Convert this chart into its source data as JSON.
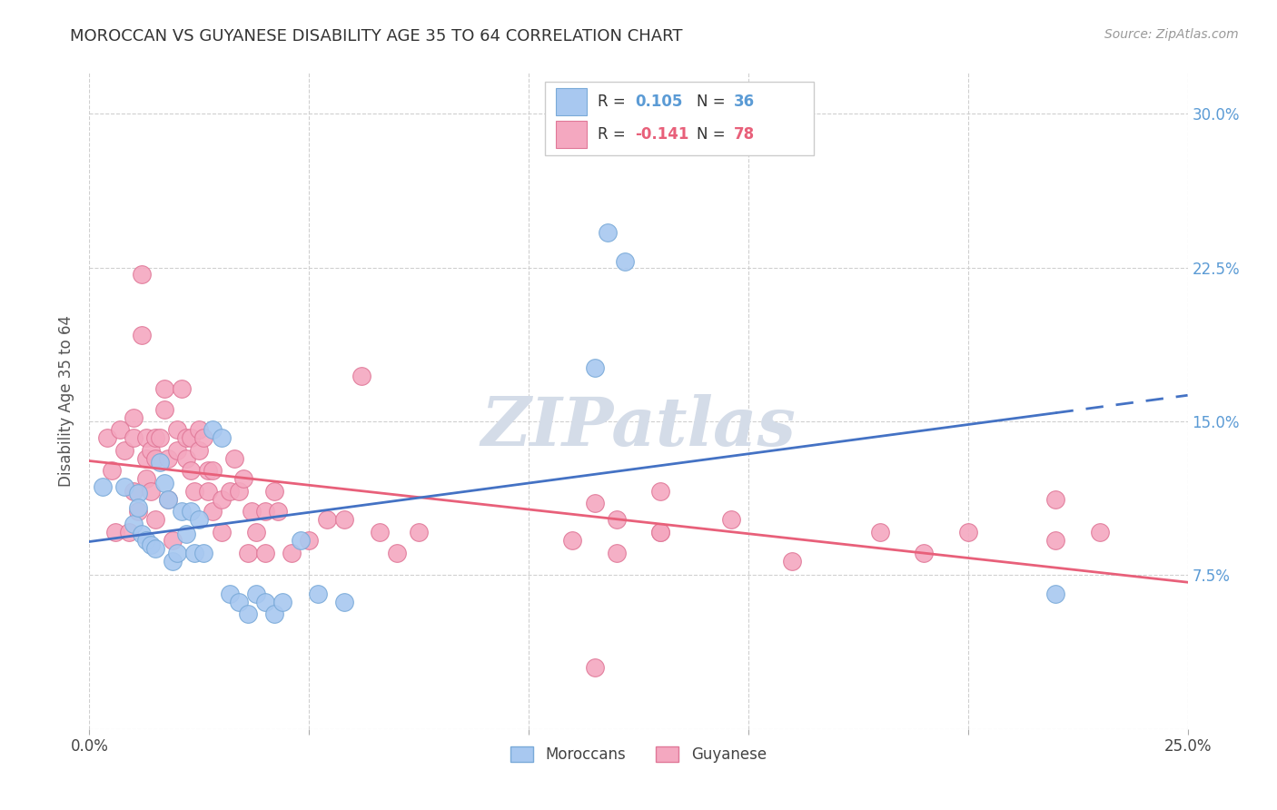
{
  "title": "MOROCCAN VS GUYANESE DISABILITY AGE 35 TO 64 CORRELATION CHART",
  "source": "Source: ZipAtlas.com",
  "ylabel": "Disability Age 35 to 64",
  "x_min": 0.0,
  "x_max": 0.25,
  "y_min": 0.0,
  "y_max": 0.32,
  "moroccan_R": 0.105,
  "moroccan_N": 36,
  "guyanese_R": -0.141,
  "guyanese_N": 78,
  "moroccan_color": "#a8c8f0",
  "moroccan_edge_color": "#7aaad8",
  "guyanese_color": "#f4a8c0",
  "guyanese_edge_color": "#e07898",
  "moroccan_line_color": "#4472c4",
  "guyanese_line_color": "#e8607a",
  "watermark_color": "#d4dce8",
  "background_color": "#ffffff",
  "grid_color": "#d0d0d0",
  "moroccan_x": [
    0.003,
    0.008,
    0.01,
    0.011,
    0.011,
    0.012,
    0.013,
    0.014,
    0.015,
    0.016,
    0.017,
    0.018,
    0.019,
    0.02,
    0.021,
    0.022,
    0.023,
    0.024,
    0.025,
    0.026,
    0.028,
    0.03,
    0.032,
    0.034,
    0.036,
    0.038,
    0.04,
    0.042,
    0.044,
    0.048,
    0.052,
    0.058,
    0.115,
    0.118,
    0.122,
    0.22
  ],
  "moroccan_y": [
    0.118,
    0.118,
    0.1,
    0.115,
    0.108,
    0.095,
    0.092,
    0.09,
    0.088,
    0.13,
    0.12,
    0.112,
    0.082,
    0.086,
    0.106,
    0.095,
    0.106,
    0.086,
    0.102,
    0.086,
    0.146,
    0.142,
    0.066,
    0.062,
    0.056,
    0.066,
    0.062,
    0.056,
    0.062,
    0.092,
    0.066,
    0.062,
    0.176,
    0.242,
    0.228,
    0.066
  ],
  "guyanese_x": [
    0.004,
    0.005,
    0.006,
    0.007,
    0.008,
    0.009,
    0.01,
    0.01,
    0.01,
    0.011,
    0.012,
    0.012,
    0.013,
    0.013,
    0.013,
    0.014,
    0.014,
    0.015,
    0.015,
    0.015,
    0.016,
    0.017,
    0.017,
    0.018,
    0.018,
    0.019,
    0.02,
    0.02,
    0.021,
    0.022,
    0.022,
    0.023,
    0.023,
    0.024,
    0.025,
    0.025,
    0.026,
    0.027,
    0.027,
    0.028,
    0.028,
    0.03,
    0.03,
    0.032,
    0.033,
    0.034,
    0.035,
    0.036,
    0.037,
    0.038,
    0.04,
    0.04,
    0.042,
    0.043,
    0.046,
    0.05,
    0.054,
    0.058,
    0.062,
    0.066,
    0.07,
    0.11,
    0.115,
    0.12,
    0.12,
    0.13,
    0.146,
    0.16,
    0.18,
    0.19,
    0.2,
    0.22,
    0.22,
    0.23,
    0.075,
    0.115,
    0.13,
    0.13
  ],
  "guyanese_y": [
    0.142,
    0.126,
    0.096,
    0.146,
    0.136,
    0.096,
    0.152,
    0.142,
    0.116,
    0.106,
    0.222,
    0.192,
    0.142,
    0.132,
    0.122,
    0.136,
    0.116,
    0.142,
    0.132,
    0.102,
    0.142,
    0.166,
    0.156,
    0.132,
    0.112,
    0.092,
    0.146,
    0.136,
    0.166,
    0.142,
    0.132,
    0.142,
    0.126,
    0.116,
    0.146,
    0.136,
    0.142,
    0.126,
    0.116,
    0.126,
    0.106,
    0.112,
    0.096,
    0.116,
    0.132,
    0.116,
    0.122,
    0.086,
    0.106,
    0.096,
    0.106,
    0.086,
    0.116,
    0.106,
    0.086,
    0.092,
    0.102,
    0.102,
    0.172,
    0.096,
    0.086,
    0.092,
    0.03,
    0.086,
    0.102,
    0.116,
    0.102,
    0.082,
    0.096,
    0.086,
    0.096,
    0.092,
    0.112,
    0.096,
    0.096,
    0.11,
    0.096,
    0.096
  ]
}
